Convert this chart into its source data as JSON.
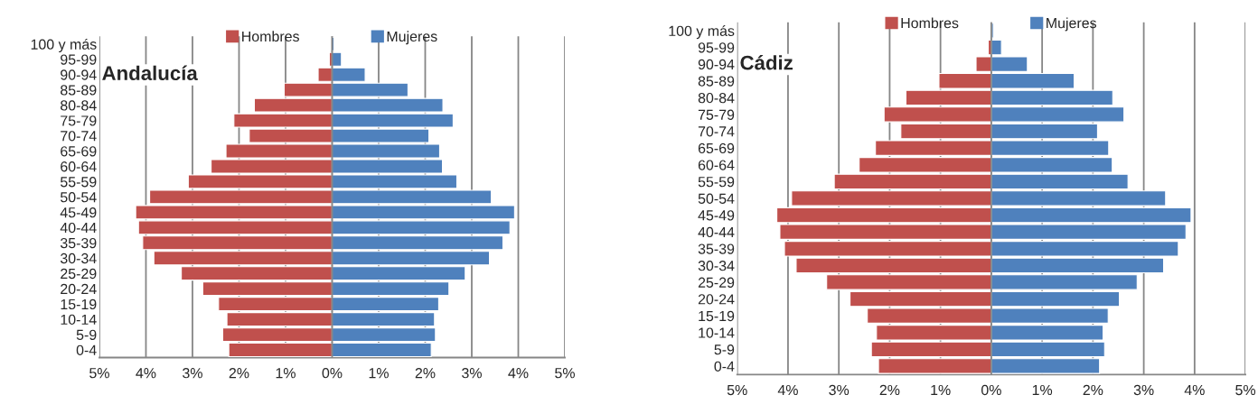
{
  "chart_data": [
    {
      "type": "bar",
      "title": "Andalucía",
      "orientation": "horizontal",
      "stacked": true,
      "categories": [
        "100 y más",
        "95-99",
        "90-94",
        "85-89",
        "80-84",
        "75-79",
        "70-74",
        "65-69",
        "60-64",
        "55-59",
        "50-54",
        "45-49",
        "40-44",
        "35-39",
        "30-34",
        "25-29",
        "20-24",
        "15-19",
        "10-14",
        "5-9",
        "0-4"
      ],
      "series": [
        {
          "name": "Hombres",
          "color": "#c0504d",
          "values": [
            -0.01,
            -0.06,
            -0.3,
            -1.03,
            -1.67,
            -2.11,
            -1.78,
            -2.28,
            -2.6,
            -3.09,
            -3.92,
            -4.22,
            -4.16,
            -4.07,
            -3.83,
            -3.24,
            -2.78,
            -2.44,
            -2.26,
            -2.35,
            -2.22
          ]
        },
        {
          "name": "Mujeres",
          "color": "#4f81bd",
          "values": [
            0.04,
            0.2,
            0.71,
            1.63,
            2.38,
            2.6,
            2.08,
            2.31,
            2.37,
            2.68,
            3.42,
            3.92,
            3.82,
            3.67,
            3.38,
            2.86,
            2.51,
            2.29,
            2.2,
            2.22,
            2.13
          ]
        }
      ],
      "xlim": [
        -5,
        5
      ],
      "xticks": [
        {
          "value": -5,
          "label": "5%"
        },
        {
          "value": -4,
          "label": "4%"
        },
        {
          "value": -3,
          "label": "3%"
        },
        {
          "value": -2,
          "label": "2%"
        },
        {
          "value": -1,
          "label": "1%"
        },
        {
          "value": 0,
          "label": "0%"
        },
        {
          "value": 1,
          "label": "1%"
        },
        {
          "value": 2,
          "label": "2%"
        },
        {
          "value": 3,
          "label": "3%"
        },
        {
          "value": 4,
          "label": "4%"
        },
        {
          "value": 5,
          "label": "5%"
        }
      ],
      "grid": "x",
      "legend": "top"
    },
    {
      "type": "bar",
      "title": "Cádiz",
      "orientation": "horizontal",
      "stacked": true,
      "categories": [
        "100 y más",
        "95-99",
        "90-94",
        "85-89",
        "80-84",
        "75-79",
        "70-74",
        "65-69",
        "60-64",
        "55-59",
        "50-54",
        "45-49",
        "40-44",
        "35-39",
        "30-34",
        "25-29",
        "20-24",
        "15-19",
        "10-14",
        "5-9",
        "0-4"
      ],
      "series": [
        {
          "name": "Hombres",
          "color": "#c0504d",
          "values": [
            -0.01,
            -0.06,
            -0.3,
            -1.03,
            -1.68,
            -2.11,
            -1.78,
            -2.28,
            -2.6,
            -3.09,
            -3.93,
            -4.22,
            -4.16,
            -4.07,
            -3.84,
            -3.24,
            -2.78,
            -2.44,
            -2.26,
            -2.36,
            -2.22
          ]
        },
        {
          "name": "Mujeres",
          "color": "#4f81bd",
          "values": [
            0.04,
            0.2,
            0.71,
            1.63,
            2.39,
            2.61,
            2.09,
            2.31,
            2.38,
            2.69,
            3.43,
            3.93,
            3.83,
            3.68,
            3.39,
            2.87,
            2.52,
            2.3,
            2.2,
            2.23,
            2.13
          ]
        }
      ],
      "xlim": [
        -5,
        5
      ],
      "xticks": [
        {
          "value": -5,
          "label": "5%"
        },
        {
          "value": -4,
          "label": "4%"
        },
        {
          "value": -3,
          "label": "3%"
        },
        {
          "value": -2,
          "label": "2%"
        },
        {
          "value": -1,
          "label": "1%"
        },
        {
          "value": 0,
          "label": "0%"
        },
        {
          "value": 1,
          "label": "1%"
        },
        {
          "value": 2,
          "label": "2%"
        },
        {
          "value": 3,
          "label": "3%"
        },
        {
          "value": 4,
          "label": "4%"
        },
        {
          "value": 5,
          "label": "5%"
        }
      ],
      "grid": "x",
      "legend": "top"
    }
  ]
}
